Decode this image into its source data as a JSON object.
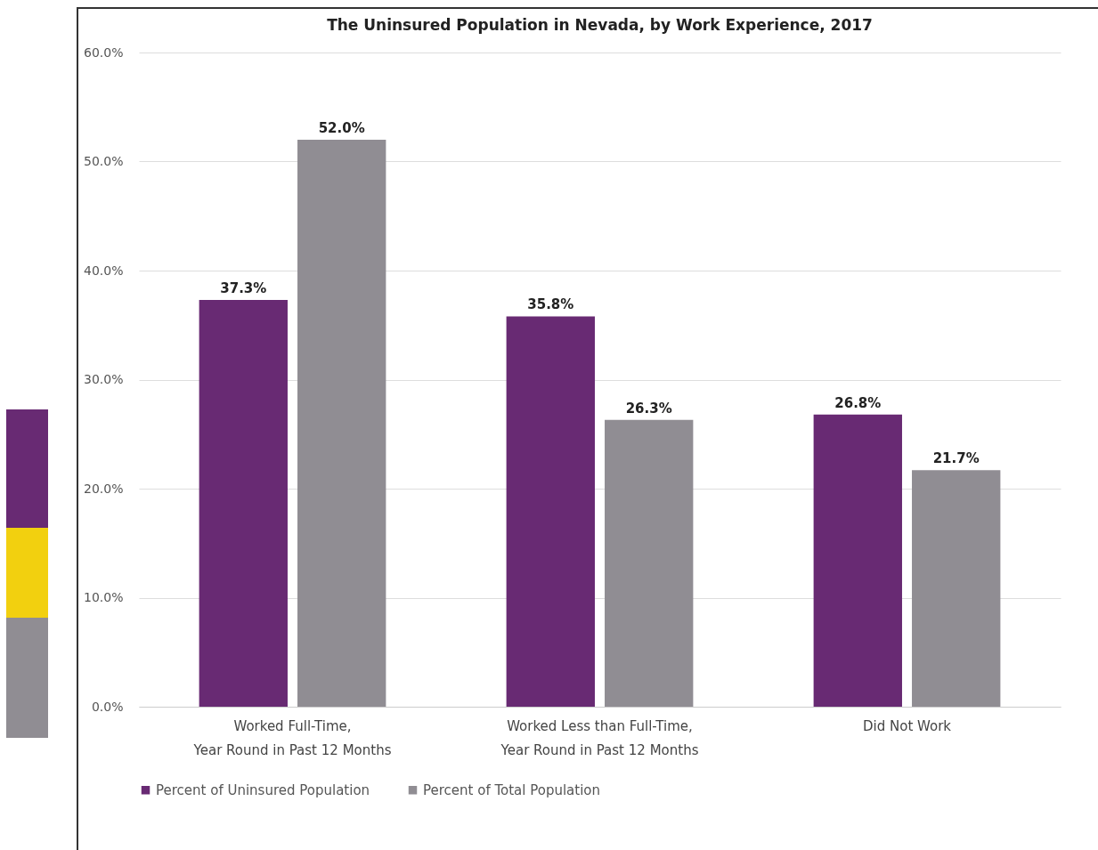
{
  "chart_data": {
    "type": "bar",
    "title": "The Uninsured Population in Nevada, by Work Experience, 2017",
    "categories": [
      "Worked Full-Time, Year Round in Past 12 Months",
      "Worked Less than Full-Time, Year Round in Past 12 Months",
      "Did Not Work"
    ],
    "series": [
      {
        "name": "Percent of Uninsured Population",
        "color": "#682a73",
        "values": [
          37.3,
          35.8,
          26.8
        ],
        "value_labels": [
          "37.3%",
          "35.8%",
          "26.8%"
        ]
      },
      {
        "name": "Percent of Total Population",
        "color": "#908d93",
        "values": [
          52.0,
          26.3,
          21.7
        ],
        "value_labels": [
          "52.0%",
          "26.3%",
          "21.7%"
        ]
      }
    ],
    "ylim": [
      0,
      60
    ],
    "yticks": [
      {
        "value": 0,
        "label": "0.0%"
      },
      {
        "value": 10,
        "label": "10.0%"
      },
      {
        "value": 20,
        "label": "20.0%"
      },
      {
        "value": 30,
        "label": "30.0%"
      },
      {
        "value": 40,
        "label": "40.0%"
      },
      {
        "value": 50,
        "label": "50.0%"
      },
      {
        "value": 60,
        "label": "60.0%"
      }
    ],
    "grid": "y",
    "legend": "bottom"
  }
}
